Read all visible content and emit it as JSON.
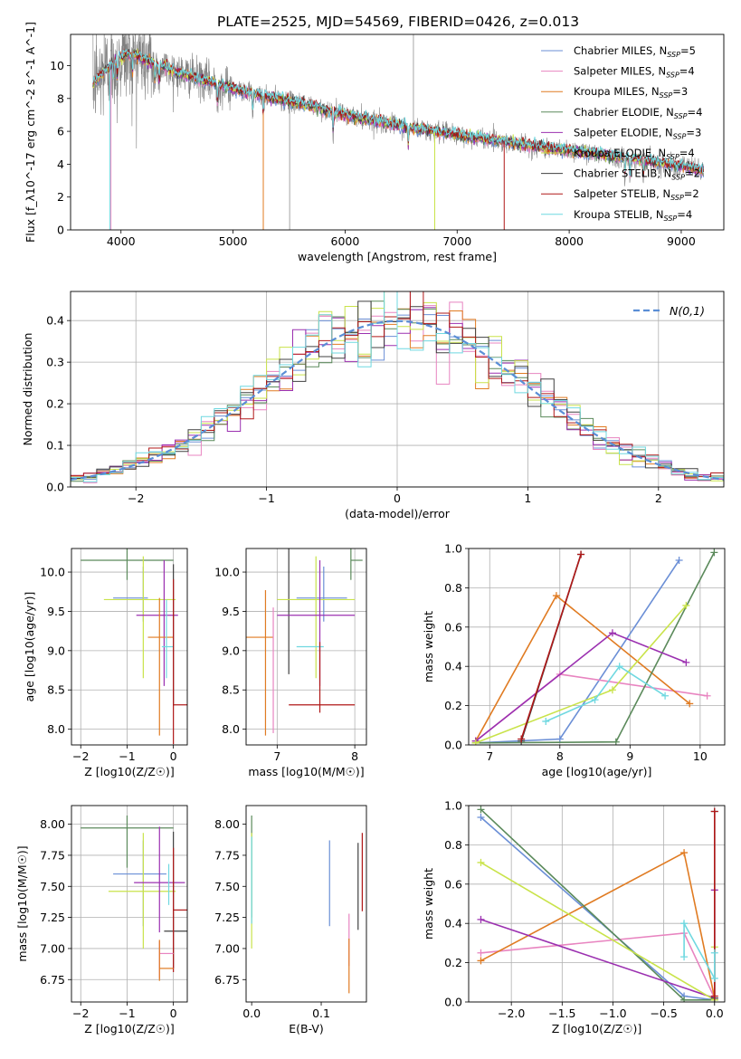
{
  "figure_title": "PLATE=2525, MJD=54569, FIBERID=0426, z=0.013",
  "chart_data": [
    {
      "id": "spectrum",
      "type": "line",
      "title": "PLATE=2525, MJD=54569, FIBERID=0426, z=0.013",
      "xlabel": "wavelength [Angstrom, rest frame]",
      "ylabel": "Flux [f_λ10^-17 erg cm^-2 s^-1 A^-1]",
      "xlim": [
        3550,
        9380
      ],
      "ylim": [
        0,
        11.9
      ],
      "xticks": [
        4000,
        5000,
        6000,
        7000,
        8000,
        9000
      ],
      "yticks": [
        0,
        2,
        4,
        6,
        8,
        10
      ],
      "grid": false,
      "legend_position": "top-right",
      "observed_color": "#808080",
      "continuum": [
        [
          3750,
          8.9
        ],
        [
          3850,
          9.6
        ],
        [
          3950,
          10.3
        ],
        [
          4050,
          10.7
        ],
        [
          4150,
          10.6
        ],
        [
          4300,
          10.1
        ],
        [
          4500,
          9.6
        ],
        [
          4800,
          9.0
        ],
        [
          5000,
          8.6
        ],
        [
          5300,
          8.1
        ],
        [
          5600,
          7.7
        ],
        [
          6000,
          7.0
        ],
        [
          6300,
          6.6
        ],
        [
          6600,
          6.2
        ],
        [
          7000,
          5.8
        ],
        [
          7400,
          5.4
        ],
        [
          7800,
          5.0
        ],
        [
          8200,
          4.7
        ],
        [
          8600,
          4.3
        ],
        [
          9000,
          3.9
        ],
        [
          9200,
          3.6
        ]
      ],
      "series": [
        {
          "name": "Chabrier MILES, N_SSP=5",
          "label_main": "Chabrier MILES, N",
          "label_sub": "SSP",
          "label_tail": "=5",
          "color": "#6b8fd6"
        },
        {
          "name": "Salpeter MILES, N_SSP=4",
          "label_main": "Salpeter MILES, N",
          "label_sub": "SSP",
          "label_tail": "=4",
          "color": "#e884c0"
        },
        {
          "name": "Kroupa MILES, N_SSP=3",
          "label_main": "Kroupa MILES, N",
          "label_sub": "SSP",
          "label_tail": "=3",
          "color": "#e07b22"
        },
        {
          "name": "Chabrier ELODIE, N_SSP=4",
          "label_main": "Chabrier ELODIE, N",
          "label_sub": "SSP",
          "label_tail": "=4",
          "color": "#5b8a5b"
        },
        {
          "name": "Salpeter ELODIE, N_SSP=3",
          "label_main": "Salpeter ELODIE, N",
          "label_sub": "SSP",
          "label_tail": "=3",
          "color": "#9b30b0"
        },
        {
          "name": "Kroupa ELODIE, N_SSP=4",
          "label_main": "Kroupa ELODIE, N",
          "label_sub": "SSP",
          "label_tail": "=4",
          "color": "#c9e34a"
        },
        {
          "name": "Chabrier STELIB, N_SSP=2",
          "label_main": "Chabrier STELIB, N",
          "label_sub": "SSP",
          "label_tail": "=2",
          "color": "#404040"
        },
        {
          "name": "Salpeter STELIB, N_SSP=2",
          "label_main": "Salpeter STELIB, N",
          "label_sub": "SSP",
          "label_tail": "=2",
          "color": "#b01818"
        },
        {
          "name": "Kroupa STELIB, N_SSP=4",
          "label_main": "Kroupa STELIB, N",
          "label_sub": "SSP",
          "label_tail": "=4",
          "color": "#6fd8e0"
        }
      ]
    },
    {
      "id": "residuals",
      "type": "histogram",
      "xlabel": "(data-model)/error",
      "ylabel": "Normed distribution",
      "xlim": [
        -2.5,
        2.5
      ],
      "ylim": [
        0,
        0.47
      ],
      "xticks": [
        -2,
        -1,
        0,
        1,
        2
      ],
      "yticks": [
        0.0,
        0.1,
        0.2,
        0.3,
        0.4
      ],
      "grid": true,
      "legend_position": "top-right",
      "reference": {
        "name": "N(0,1)",
        "color": "#5a8ed6",
        "dash": "dashed"
      },
      "bin_width": 0.1
    },
    {
      "id": "age_vs_Z",
      "type": "errorbar",
      "xlabel": "Z [log10(Z/Z☉)]",
      "ylabel": "age [log10(age/yr)]",
      "xlim": [
        -2.2,
        0.3
      ],
      "ylim": [
        7.8,
        10.3
      ],
      "xticks": [
        -2,
        -1,
        0
      ],
      "yticks": [
        8.0,
        8.5,
        9.0,
        9.5,
        10.0
      ],
      "grid": true
    },
    {
      "id": "age_vs_mass",
      "type": "errorbar",
      "xlabel": "mass [log10(M/M☉)]",
      "ylabel": "",
      "xlim": [
        6.6,
        8.15
      ],
      "ylim": [
        7.8,
        10.3
      ],
      "xticks": [
        7,
        8
      ],
      "yticks": [
        8.0,
        8.5,
        9.0,
        9.5,
        10.0
      ],
      "grid": true
    },
    {
      "id": "weight_vs_age",
      "type": "line",
      "xlabel": "age [log10(age/yr)]",
      "ylabel": "mass weight",
      "xlim": [
        6.7,
        10.35
      ],
      "ylim": [
        0,
        1.0
      ],
      "xticks": [
        7,
        8,
        9,
        10
      ],
      "yticks": [
        0.0,
        0.2,
        0.4,
        0.6,
        0.8,
        1.0
      ],
      "grid": true,
      "series": [
        {
          "name": "Chabrier MILES",
          "color": "#6b8fd6",
          "x": [
            6.8,
            8.0,
            9.7
          ],
          "y": [
            0.01,
            0.03,
            0.94
          ]
        },
        {
          "name": "Salpeter MILES",
          "color": "#e884c0",
          "x": [
            6.8,
            8.0,
            10.1
          ],
          "y": [
            0.02,
            0.36,
            0.25
          ]
        },
        {
          "name": "Kroupa MILES",
          "color": "#e07b22",
          "x": [
            6.8,
            7.95,
            9.85
          ],
          "y": [
            0.02,
            0.76,
            0.21
          ]
        },
        {
          "name": "Chabrier ELODIE",
          "color": "#5b8a5b",
          "x": [
            6.8,
            8.8,
            10.2
          ],
          "y": [
            0.01,
            0.015,
            0.98
          ]
        },
        {
          "name": "Salpeter ELODIE",
          "color": "#9b30b0",
          "x": [
            6.8,
            8.75,
            9.8
          ],
          "y": [
            0.02,
            0.57,
            0.42
          ]
        },
        {
          "name": "Kroupa ELODIE",
          "color": "#c9e34a",
          "x": [
            6.8,
            8.75,
            9.8
          ],
          "y": [
            0.01,
            0.28,
            0.71
          ]
        },
        {
          "name": "Chabrier STELIB",
          "color": "#404040",
          "x": [
            7.45,
            8.3
          ],
          "y": [
            0.02,
            0.97
          ]
        },
        {
          "name": "Salpeter STELIB",
          "color": "#b01818",
          "x": [
            7.45,
            8.3
          ],
          "y": [
            0.03,
            0.97
          ]
        },
        {
          "name": "Kroupa STELIB",
          "color": "#6fd8e0",
          "x": [
            7.8,
            8.5,
            8.85,
            9.5
          ],
          "y": [
            0.12,
            0.23,
            0.4,
            0.25
          ]
        }
      ]
    },
    {
      "id": "mass_vs_Z",
      "type": "errorbar",
      "xlabel": "Z [log10(Z/Z☉)]",
      "ylabel": "mass [log10(M/M☉)]",
      "xlim": [
        -2.2,
        0.3
      ],
      "ylim": [
        6.57,
        8.15
      ],
      "xticks": [
        -2,
        -1,
        0
      ],
      "yticks": [
        6.75,
        7.0,
        7.25,
        7.5,
        7.75,
        8.0
      ],
      "grid": true
    },
    {
      "id": "mass_vs_ebv",
      "type": "errorbar",
      "xlabel": "E(B-V)",
      "ylabel": "",
      "xlim": [
        -0.008,
        0.165
      ],
      "ylim": [
        6.57,
        8.15
      ],
      "xticks": [
        0.0,
        0.1
      ],
      "yticks": [
        6.75,
        7.0,
        7.25,
        7.5,
        7.75,
        8.0
      ],
      "grid": false
    },
    {
      "id": "weight_vs_Z",
      "type": "line",
      "xlabel": "Z [log10(Z/Z☉)]",
      "ylabel": "mass weight",
      "xlim": [
        -2.42,
        0.1
      ],
      "ylim": [
        0,
        1.0
      ],
      "xticks": [
        -2.0,
        -1.5,
        -1.0,
        -0.5,
        0.0
      ],
      "yticks": [
        0.0,
        0.2,
        0.4,
        0.6,
        0.8,
        1.0
      ],
      "grid": true,
      "series": [
        {
          "name": "Chabrier MILES",
          "color": "#6b8fd6",
          "x": [
            -2.3,
            -0.3,
            0.0
          ],
          "y": [
            0.94,
            0.03,
            0.01
          ]
        },
        {
          "name": "Salpeter MILES",
          "color": "#e884c0",
          "x": [
            -2.3,
            -0.3,
            0.0
          ],
          "y": [
            0.25,
            0.35,
            0.02
          ]
        },
        {
          "name": "Kroupa MILES",
          "color": "#e07b22",
          "x": [
            -2.3,
            -0.3,
            0.0
          ],
          "y": [
            0.21,
            0.76,
            0.02
          ]
        },
        {
          "name": "Chabrier ELODIE",
          "color": "#5b8a5b",
          "x": [
            -2.3,
            -0.3,
            0.0
          ],
          "y": [
            0.98,
            0.01,
            0.01
          ]
        },
        {
          "name": "Salpeter ELODIE",
          "color": "#9b30b0",
          "x": [
            -2.3,
            0.0,
            0.0
          ],
          "y": [
            0.42,
            0.02,
            0.57
          ]
        },
        {
          "name": "Kroupa ELODIE",
          "color": "#c9e34a",
          "x": [
            -2.3,
            0.0,
            0.0
          ],
          "y": [
            0.71,
            0.01,
            0.28
          ]
        },
        {
          "name": "Chabrier STELIB",
          "color": "#404040",
          "x": [
            0.0,
            0.0
          ],
          "y": [
            0.02,
            0.97
          ]
        },
        {
          "name": "Salpeter STELIB",
          "color": "#b01818",
          "x": [
            0.0,
            0.0
          ],
          "y": [
            0.03,
            0.97
          ]
        },
        {
          "name": "Kroupa STELIB",
          "color": "#6fd8e0",
          "x": [
            -0.3,
            -0.3,
            0.0,
            0.0
          ],
          "y": [
            0.23,
            0.4,
            0.12,
            0.25
          ]
        }
      ]
    }
  ]
}
